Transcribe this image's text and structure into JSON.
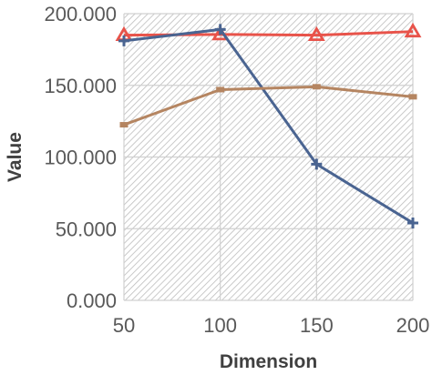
{
  "chart_data": {
    "type": "line",
    "title": "",
    "xlabel": "Dimension",
    "ylabel": "Value",
    "x": [
      50,
      100,
      150,
      200
    ],
    "x_tick_labels": [
      "50",
      "100",
      "150",
      "200"
    ],
    "xlim": [
      50,
      200
    ],
    "y_tick_labels": [
      "0.000",
      "50.000",
      "100.000",
      "150.000",
      "200.000"
    ],
    "ylim": [
      0,
      200
    ],
    "grid": true,
    "plot_background": "diagonal-hatch",
    "legend": "none",
    "series": [
      {
        "color": "#E8534A",
        "marker": "open-triangle",
        "values": [
          185,
          185.5,
          185,
          187.5
        ]
      },
      {
        "color": "#4A6491",
        "marker": "plus",
        "values": [
          181,
          189,
          95,
          54
        ]
      },
      {
        "color": "#B58561",
        "marker": "square",
        "values": [
          122.5,
          147,
          149,
          142
        ]
      }
    ]
  }
}
